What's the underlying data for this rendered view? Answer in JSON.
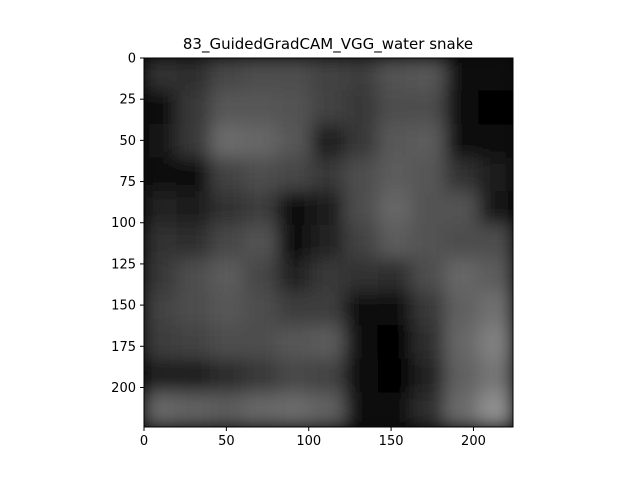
{
  "chart_data": {
    "type": "heatmap",
    "title": "83_GuidedGradCAM_VGG_water snake",
    "xlabel": "",
    "ylabel": "",
    "xlim": [
      0,
      224
    ],
    "ylim": [
      224,
      0
    ],
    "xticks": [
      0,
      50,
      100,
      150,
      200
    ],
    "yticks": [
      0,
      25,
      50,
      75,
      100,
      125,
      150,
      175,
      200
    ],
    "colormap": "grayscale",
    "grid": false,
    "intensity_grid_rows_top_to_bottom": [
      [
        0.2,
        0.18,
        0.28,
        0.3,
        0.3,
        0.26,
        0.24,
        0.32,
        0.34,
        0.05,
        0.03
      ],
      [
        0.05,
        0.22,
        0.34,
        0.34,
        0.32,
        0.26,
        0.22,
        0.3,
        0.3,
        0.04,
        0.02
      ],
      [
        0.08,
        0.22,
        0.42,
        0.4,
        0.34,
        0.12,
        0.22,
        0.35,
        0.36,
        0.05,
        0.03
      ],
      [
        0.04,
        0.06,
        0.26,
        0.3,
        0.28,
        0.22,
        0.3,
        0.36,
        0.34,
        0.2,
        0.1
      ],
      [
        0.14,
        0.1,
        0.2,
        0.24,
        0.04,
        0.1,
        0.3,
        0.4,
        0.32,
        0.32,
        0.08
      ],
      [
        0.2,
        0.18,
        0.28,
        0.32,
        0.06,
        0.14,
        0.26,
        0.36,
        0.32,
        0.3,
        0.3
      ],
      [
        0.22,
        0.3,
        0.36,
        0.28,
        0.14,
        0.22,
        0.2,
        0.18,
        0.3,
        0.4,
        0.36
      ],
      [
        0.26,
        0.3,
        0.34,
        0.3,
        0.24,
        0.24,
        0.04,
        0.03,
        0.22,
        0.38,
        0.44
      ],
      [
        0.24,
        0.26,
        0.3,
        0.3,
        0.34,
        0.36,
        0.03,
        0.02,
        0.18,
        0.4,
        0.5
      ],
      [
        0.1,
        0.12,
        0.16,
        0.22,
        0.28,
        0.26,
        0.04,
        0.02,
        0.14,
        0.38,
        0.46
      ],
      [
        0.4,
        0.38,
        0.36,
        0.4,
        0.42,
        0.38,
        0.06,
        0.03,
        0.18,
        0.42,
        0.56
      ]
    ]
  }
}
